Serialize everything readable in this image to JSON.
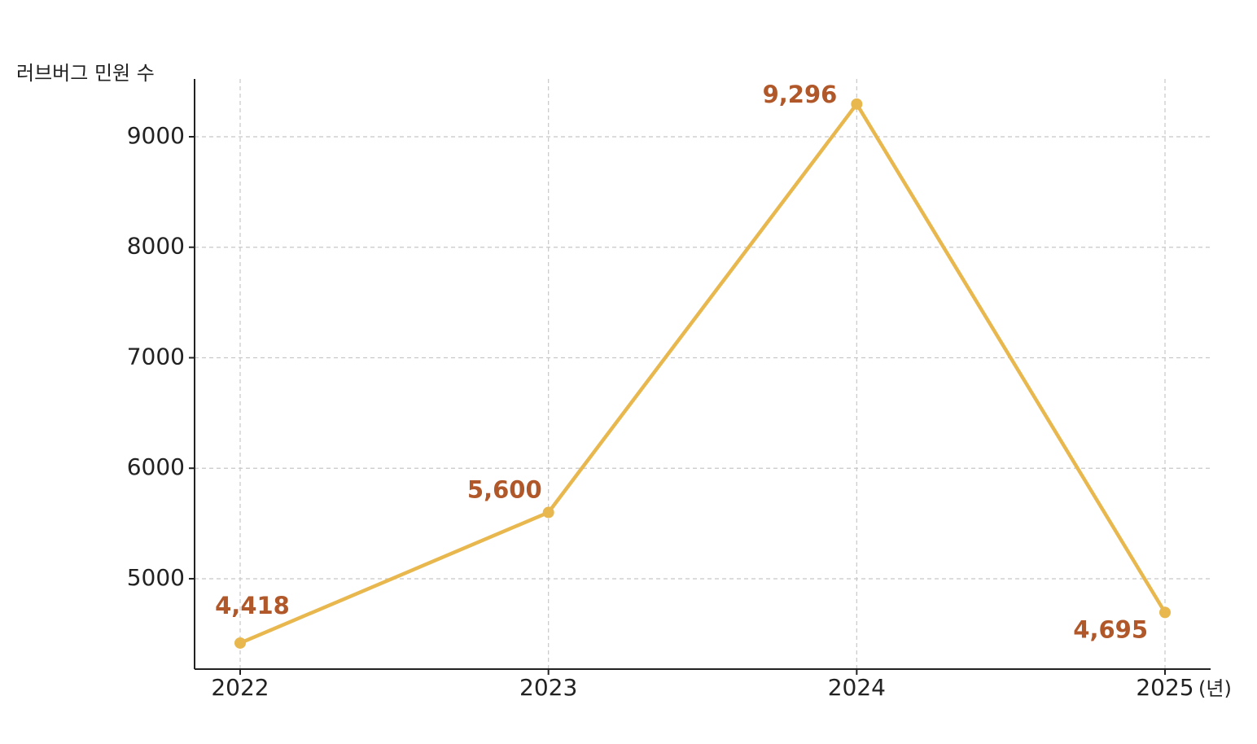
{
  "chart_data": {
    "type": "line",
    "y_label": "러브버그 민원 수",
    "x_label": "(년)",
    "categories": [
      "2022",
      "2023",
      "2024",
      "2025"
    ],
    "series": [
      {
        "name": "러브버그 민원 수",
        "color": "#e8b84f",
        "values": [
          4418,
          5600,
          9296,
          4695
        ],
        "value_labels": [
          "4,418",
          "5,600",
          "9,296",
          "4,695"
        ]
      }
    ],
    "ylim": [
      4182,
      9523
    ],
    "yticks": [
      5000,
      6000,
      7000,
      8000,
      9000
    ],
    "grid": true
  }
}
